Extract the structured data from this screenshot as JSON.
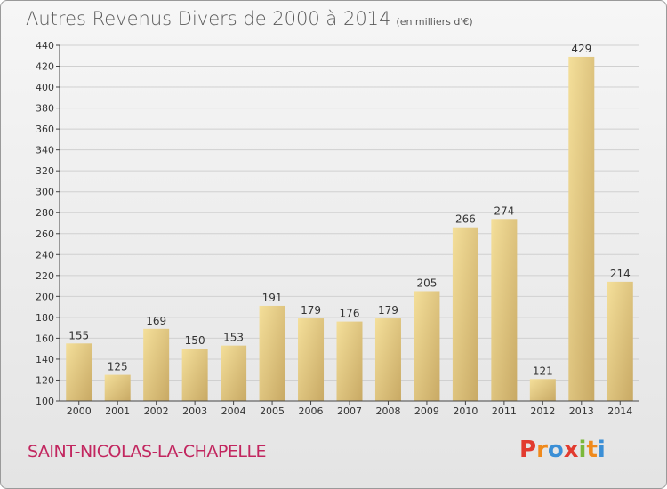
{
  "header": {
    "title": "Autres Revenus Divers de 2000 à 2014",
    "unit": "(en milliers d'€)"
  },
  "footer": {
    "commune": "SAINT-NICOLAS-LA-CHAPELLE",
    "brand_letters": [
      "P",
      "r",
      "o",
      "x",
      "i",
      "t",
      "i"
    ],
    "brand_colors": [
      "#e23b2f",
      "#f08a1c",
      "#3b8fd6",
      "#e23b2f",
      "#7bb83a",
      "#f08a1c",
      "#3b8fd6"
    ]
  },
  "colors": {
    "bar_light": "#f4df9a",
    "bar_dark": "#c8a964",
    "grid": "#d0d0d0",
    "axis": "#444444"
  },
  "chart_data": {
    "type": "bar",
    "categories": [
      "2000",
      "2001",
      "2002",
      "2003",
      "2004",
      "2005",
      "2006",
      "2007",
      "2008",
      "2009",
      "2010",
      "2011",
      "2012",
      "2013",
      "2014"
    ],
    "values": [
      155,
      125,
      169,
      150,
      153,
      191,
      179,
      176,
      179,
      205,
      266,
      274,
      121,
      429,
      214
    ],
    "title": "Autres Revenus Divers de 2000 à 2014",
    "xlabel": "",
    "ylabel": "",
    "ylim": [
      100,
      440
    ],
    "yticks": [
      100,
      120,
      140,
      160,
      180,
      200,
      220,
      240,
      260,
      280,
      300,
      320,
      340,
      360,
      380,
      400,
      420,
      440
    ],
    "grid": true,
    "show_value_labels": true
  }
}
